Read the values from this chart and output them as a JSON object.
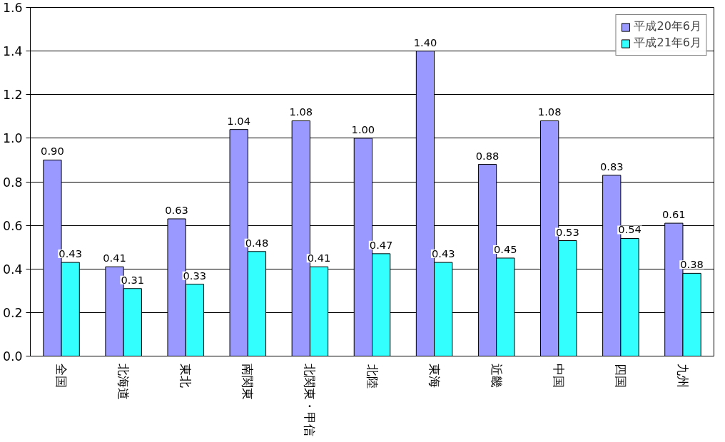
{
  "chart_data": {
    "type": "bar",
    "categories": [
      "全国",
      "北海道",
      "東北",
      "南関東",
      "北関東・甲信",
      "北陸",
      "東海",
      "近畿",
      "中国",
      "四国",
      "九州"
    ],
    "series": [
      {
        "name": "平成20年6月",
        "color": "#9999ff",
        "values": [
          0.9,
          0.41,
          0.63,
          1.04,
          1.08,
          1.0,
          1.4,
          0.88,
          1.08,
          0.83,
          0.61
        ],
        "value_labels": [
          "0.90",
          "0.41",
          "0.63",
          "1.04",
          "1.08",
          "1.00",
          "1.40",
          "0.88",
          "1.08",
          "0.83",
          "0.61"
        ]
      },
      {
        "name": "平成21年6月",
        "color": "#33ffff",
        "values": [
          0.43,
          0.31,
          0.33,
          0.48,
          0.41,
          0.47,
          0.43,
          0.45,
          0.53,
          0.54,
          0.38
        ],
        "value_labels": [
          "0.43",
          "0.31",
          "0.33",
          "0.48",
          "0.41",
          "0.47",
          "0.43",
          "0.45",
          "0.53",
          "0.54",
          "0.38"
        ]
      }
    ],
    "ylim": [
      0,
      1.6
    ],
    "yticks": [
      {
        "value": 0,
        "label": "0.0"
      },
      {
        "value": 0.2,
        "label": "0.2"
      },
      {
        "value": 0.4,
        "label": "0.4"
      },
      {
        "value": 0.6,
        "label": "0.6"
      },
      {
        "value": 0.8,
        "label": "0.8"
      },
      {
        "value": 1.0,
        "label": "1.0"
      },
      {
        "value": 1.2,
        "label": "1.2"
      },
      {
        "value": 1.4,
        "label": "1.4"
      },
      {
        "value": 1.6,
        "label": "1.6"
      }
    ],
    "grid": "y",
    "legend": "top right"
  }
}
